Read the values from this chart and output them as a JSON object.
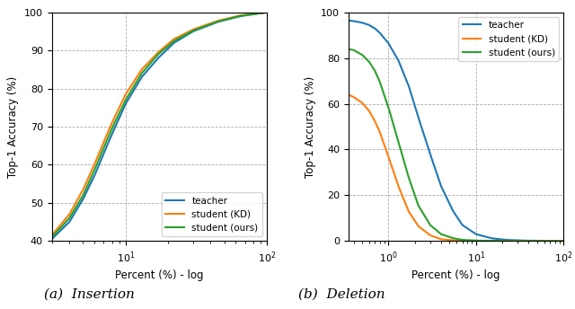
{
  "insertion": {
    "xlim": [
      3,
      100
    ],
    "ylim": [
      40,
      100
    ],
    "yticks": [
      40,
      50,
      60,
      70,
      80,
      90,
      100
    ],
    "xlabel": "Percent (%) - log",
    "ylabel": "Top-1 Accuracy (%)",
    "legend_labels": [
      "teacher",
      "student (KD)",
      "student (ours)"
    ],
    "colors": [
      "#1f77b4",
      "#ff7f0e",
      "#2ca02c"
    ],
    "teacher": [
      [
        3.0,
        40.5
      ],
      [
        4.0,
        45.0
      ],
      [
        5.0,
        51.0
      ],
      [
        6.0,
        57.0
      ],
      [
        7.0,
        63.0
      ],
      [
        8.0,
        68.0
      ],
      [
        10.0,
        76.0
      ],
      [
        13.0,
        83.0
      ],
      [
        17.0,
        88.0
      ],
      [
        22.0,
        92.0
      ],
      [
        30.0,
        95.0
      ],
      [
        45.0,
        97.5
      ],
      [
        65.0,
        99.0
      ],
      [
        100.0,
        100.0
      ]
    ],
    "kd": [
      [
        3.0,
        41.5
      ],
      [
        4.0,
        47.0
      ],
      [
        5.0,
        53.5
      ],
      [
        6.0,
        60.0
      ],
      [
        7.0,
        66.0
      ],
      [
        8.0,
        71.0
      ],
      [
        10.0,
        78.5
      ],
      [
        13.0,
        85.0
      ],
      [
        17.0,
        89.5
      ],
      [
        22.0,
        93.0
      ],
      [
        30.0,
        95.5
      ],
      [
        45.0,
        97.8
      ],
      [
        65.0,
        99.2
      ],
      [
        100.0,
        100.0
      ]
    ],
    "ours": [
      [
        3.0,
        41.0
      ],
      [
        4.0,
        46.0
      ],
      [
        5.0,
        52.0
      ],
      [
        6.0,
        58.5
      ],
      [
        7.0,
        64.5
      ],
      [
        8.0,
        69.5
      ],
      [
        10.0,
        77.0
      ],
      [
        13.0,
        84.0
      ],
      [
        17.0,
        89.0
      ],
      [
        22.0,
        92.5
      ],
      [
        30.0,
        95.2
      ],
      [
        45.0,
        97.6
      ],
      [
        65.0,
        99.1
      ],
      [
        100.0,
        100.0
      ]
    ]
  },
  "deletion": {
    "xlim": [
      0.35,
      100
    ],
    "ylim": [
      0,
      100
    ],
    "yticks": [
      0,
      20,
      40,
      60,
      80,
      100
    ],
    "xlabel": "Percent (%) - log",
    "ylabel": "Top-1 Accuracy (%)",
    "legend_labels": [
      "teacher",
      "student (KD)",
      "student (ours)"
    ],
    "colors": [
      "#1f77b4",
      "#ff7f0e",
      "#2ca02c"
    ],
    "teacher": [
      [
        0.35,
        96.5
      ],
      [
        0.4,
        96.2
      ],
      [
        0.5,
        95.5
      ],
      [
        0.6,
        94.5
      ],
      [
        0.7,
        93.0
      ],
      [
        0.8,
        91.0
      ],
      [
        1.0,
        86.5
      ],
      [
        1.3,
        79.0
      ],
      [
        1.7,
        68.0
      ],
      [
        2.2,
        54.0
      ],
      [
        3.0,
        38.0
      ],
      [
        4.0,
        24.0
      ],
      [
        5.5,
        13.0
      ],
      [
        7.0,
        7.0
      ],
      [
        10.0,
        3.0
      ],
      [
        15.0,
        1.2
      ],
      [
        22.0,
        0.5
      ],
      [
        35.0,
        0.2
      ],
      [
        100.0,
        0.0
      ]
    ],
    "kd": [
      [
        0.35,
        64.0
      ],
      [
        0.4,
        63.0
      ],
      [
        0.5,
        60.5
      ],
      [
        0.6,
        57.0
      ],
      [
        0.7,
        52.5
      ],
      [
        0.8,
        47.5
      ],
      [
        1.0,
        37.0
      ],
      [
        1.3,
        24.0
      ],
      [
        1.7,
        13.0
      ],
      [
        2.2,
        6.5
      ],
      [
        3.0,
        2.5
      ],
      [
        4.0,
        0.8
      ],
      [
        5.5,
        0.3
      ],
      [
        7.0,
        0.1
      ],
      [
        10.0,
        0.0
      ],
      [
        100.0,
        0.0
      ]
    ],
    "ours": [
      [
        0.35,
        84.0
      ],
      [
        0.4,
        83.5
      ],
      [
        0.5,
        81.5
      ],
      [
        0.6,
        78.5
      ],
      [
        0.7,
        74.5
      ],
      [
        0.8,
        69.5
      ],
      [
        1.0,
        58.5
      ],
      [
        1.3,
        43.5
      ],
      [
        1.7,
        28.0
      ],
      [
        2.2,
        15.5
      ],
      [
        3.0,
        7.0
      ],
      [
        4.0,
        3.0
      ],
      [
        5.5,
        1.2
      ],
      [
        7.0,
        0.5
      ],
      [
        10.0,
        0.2
      ],
      [
        15.0,
        0.1
      ],
      [
        22.0,
        0.0
      ],
      [
        100.0,
        0.0
      ]
    ]
  },
  "caption_a": "(a)  Insertion",
  "caption_b": "(b)  Deletion"
}
